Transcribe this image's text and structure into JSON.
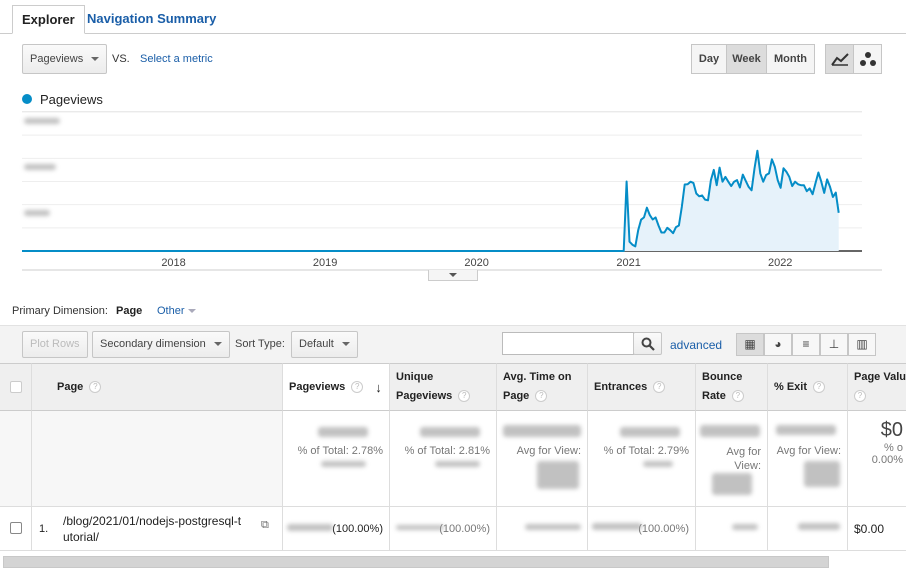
{
  "tabs": [
    {
      "label": "Explorer",
      "active": true
    },
    {
      "label": "Navigation Summary",
      "active": false
    }
  ],
  "metric": {
    "selected": "Pageviews",
    "vs": "VS.",
    "compare_link": "Select a metric"
  },
  "granularity": {
    "options": [
      "Day",
      "Week",
      "Month"
    ],
    "selected": "Week"
  },
  "chart_types": {
    "options": [
      "line-chart-icon",
      "motion-chart-icon"
    ],
    "selected": "line-chart-icon"
  },
  "legend": {
    "label": "Pageviews",
    "color": "#058dc7"
  },
  "chart_data": {
    "type": "area",
    "xlabel": "",
    "ylabel": "",
    "x_ticks": [
      "2018",
      "2019",
      "2020",
      "2021",
      "2022"
    ],
    "xlim": [
      "2017-01-01",
      "2022-07-17"
    ],
    "ylim": [
      0,
      6
    ],
    "grid": true,
    "y_tick_labels_visible": false,
    "series": [
      {
        "name": "Pageviews",
        "color": "#058dc7",
        "fill": "#e6f2fa",
        "x_start": "2020-12-20",
        "interval": "week",
        "values": [
          0,
          3.0,
          0.4,
          0.27,
          0.2,
          0.9,
          1.35,
          1.45,
          1.87,
          1.55,
          1.36,
          1.45,
          1.1,
          0.8,
          0.8,
          1.0,
          0.9,
          0.77,
          1.03,
          1.1,
          1.9,
          2.87,
          2.88,
          2.99,
          2.94,
          2.48,
          2.36,
          2.4,
          2.22,
          2.19,
          3.06,
          3.5,
          2.84,
          3.6,
          2.99,
          3.2,
          2.99,
          2.8,
          2.99,
          3.06,
          2.74,
          3.3,
          3.03,
          2.77,
          2.62,
          3.56,
          4.33,
          3.35,
          2.99,
          3.28,
          3.35,
          3.96,
          3.64,
          3.06,
          2.73,
          3.57,
          3.42,
          3.2,
          2.8,
          2.99,
          2.88,
          2.84,
          2.84,
          2.58,
          2.7,
          2.45,
          2.93,
          3.39,
          2.99,
          2.51,
          3.09,
          2.77,
          2.33,
          2.52,
          1.65
        ]
      }
    ]
  },
  "dimension": {
    "label": "Primary Dimension:",
    "selected": "Page",
    "other": "Other"
  },
  "toolbar": {
    "plot_rows": "Plot Rows",
    "secondary": "Secondary dimension",
    "sort_label": "Sort Type:",
    "sort_value": "Default",
    "search_placeholder": "",
    "advanced": "advanced"
  },
  "view_icons": [
    "data-table-icon",
    "pie-chart-icon",
    "performance-bar-icon",
    "comparison-icon",
    "pivot-table-icon"
  ],
  "table": {
    "columns": [
      "Page",
      "Pageviews",
      "Unique Pageviews",
      "Avg. Time on Page",
      "Entrances",
      "Bounce Rate",
      "% Exit",
      "Page Value"
    ],
    "totals": [
      "% of Total: 2.78%",
      "% of Total: 2.81%",
      "Avg for View:",
      "% of Total: 2.79%",
      "Avg for View:",
      "Avg for View:",
      "$0",
      "% o",
      "0.00%"
    ],
    "rows": [
      {
        "index": "1.",
        "page": "/blog/2021/01/nodejs-postgresql-tutorial/",
        "pageviews_pct": "(100.00%)",
        "unique_pct": "(100.00%)",
        "entrances_pct": "(100.00%)",
        "page_value": "$0.00"
      }
    ]
  }
}
